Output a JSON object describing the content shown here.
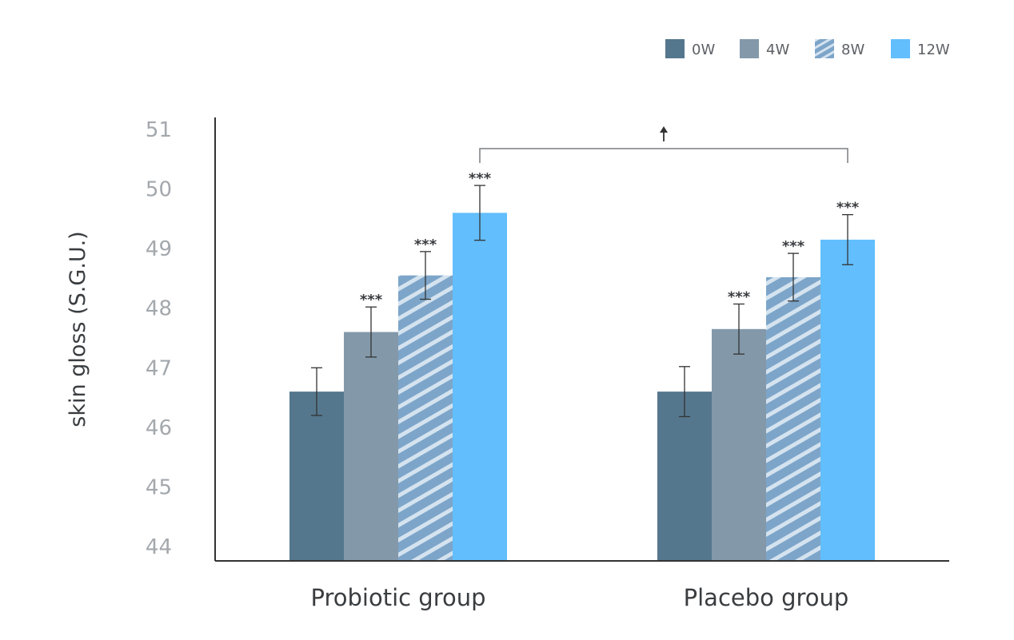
{
  "chart_data": {
    "type": "bar",
    "ylabel": "skin gloss (S.G.U.)",
    "xlabel": "",
    "ylim": [
      44,
      51
    ],
    "yticks": [
      44,
      45,
      46,
      47,
      48,
      49,
      50,
      51
    ],
    "categories": [
      "Probiotic group",
      "Placebo group"
    ],
    "series": [
      {
        "name": "0W",
        "values": [
          46.6,
          46.6
        ],
        "error": [
          0.4,
          0.42
        ],
        "sig": [
          "",
          ""
        ],
        "color": "#55778d",
        "pattern": "solid"
      },
      {
        "name": "4W",
        "values": [
          47.6,
          47.65
        ],
        "error": [
          0.42,
          0.42
        ],
        "sig": [
          "***",
          "***"
        ],
        "color": "#8399aa",
        "pattern": "solid"
      },
      {
        "name": "8W",
        "values": [
          48.55,
          48.52
        ],
        "error": [
          0.4,
          0.4
        ],
        "sig": [
          "***",
          "***"
        ],
        "color": "#7da5c9",
        "pattern": "hatch"
      },
      {
        "name": "12W",
        "values": [
          49.6,
          49.15
        ],
        "error": [
          0.46,
          0.42
        ],
        "sig": [
          "***",
          "***"
        ],
        "color": "#62befd",
        "pattern": "solid"
      }
    ],
    "comparison": {
      "from_category": 0,
      "to_category": 1,
      "series": "12W",
      "marker": "↑"
    },
    "legend_position": "top-right",
    "grid": false
  }
}
